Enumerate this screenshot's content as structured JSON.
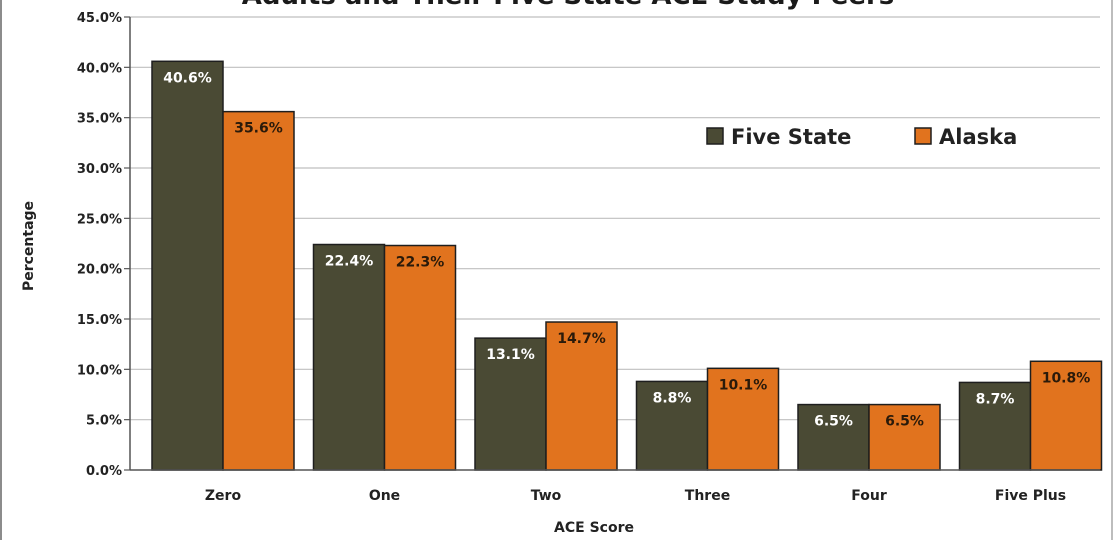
{
  "chart_data": {
    "type": "bar",
    "title": "Adults and Their Five State ACE Study Peers",
    "xlabel": "ACE Score",
    "ylabel": "Percentage",
    "categories": [
      "Zero",
      "One",
      "Two",
      "Three",
      "Four",
      "Five Plus"
    ],
    "series": [
      {
        "name": "Five State",
        "color": "#4a4a34",
        "label_color": "#ffffff",
        "values": [
          40.6,
          22.4,
          13.1,
          8.8,
          6.5,
          8.7
        ],
        "labels": [
          "40.6%",
          "22.4%",
          "13.1%",
          "8.8%",
          "6.5%",
          "8.7%"
        ]
      },
      {
        "name": "Alaska",
        "color": "#e1731e",
        "label_color": "#2a1a0a",
        "values": [
          35.6,
          22.3,
          14.7,
          10.1,
          6.5,
          10.8
        ],
        "labels": [
          "35.6%",
          "22.3%",
          "14.7%",
          "10.1%",
          "6.5%",
          "10.8%"
        ]
      }
    ],
    "ylim": [
      0,
      45
    ],
    "yticks": [
      0,
      5,
      10,
      15,
      20,
      25,
      30,
      35,
      40,
      45
    ],
    "ytick_labels": [
      "0.0%",
      "5.0%",
      "10.0%",
      "15.0%",
      "20.0%",
      "25.0%",
      "30.0%",
      "35.0%",
      "40.0%",
      "45.0%"
    ],
    "grid": true,
    "legend_position": "top-right",
    "gridline_color": "#bfbfbf",
    "bar_edge_color": "#1e1e1e"
  }
}
